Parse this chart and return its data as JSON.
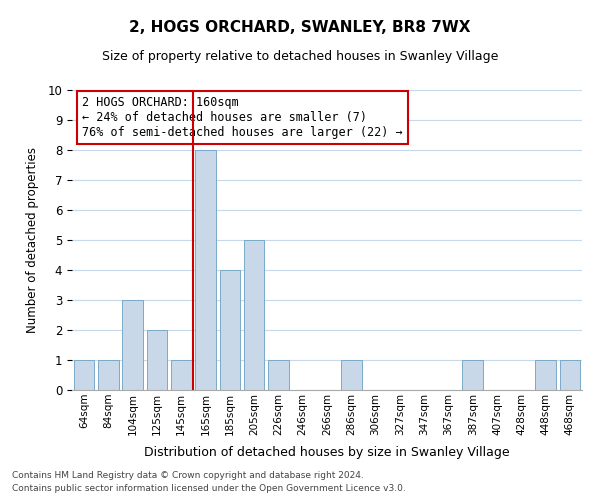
{
  "title": "2, HOGS ORCHARD, SWANLEY, BR8 7WX",
  "subtitle": "Size of property relative to detached houses in Swanley Village",
  "xlabel": "Distribution of detached houses by size in Swanley Village",
  "ylabel": "Number of detached properties",
  "bar_labels": [
    "64sqm",
    "84sqm",
    "104sqm",
    "125sqm",
    "145sqm",
    "165sqm",
    "185sqm",
    "205sqm",
    "226sqm",
    "246sqm",
    "266sqm",
    "286sqm",
    "306sqm",
    "327sqm",
    "347sqm",
    "367sqm",
    "387sqm",
    "407sqm",
    "428sqm",
    "448sqm",
    "468sqm"
  ],
  "bar_values": [
    1,
    1,
    3,
    2,
    1,
    8,
    4,
    5,
    1,
    0,
    0,
    1,
    0,
    0,
    0,
    0,
    1,
    0,
    0,
    1,
    1
  ],
  "bar_color": "#c8d8e8",
  "bar_edge_color": "#7aaac8",
  "highlight_line_index": 5,
  "highlight_line_color": "#cc0000",
  "annotation_title": "2 HOGS ORCHARD: 160sqm",
  "annotation_line1": "← 24% of detached houses are smaller (7)",
  "annotation_line2": "76% of semi-detached houses are larger (22) →",
  "annotation_box_color": "#ffffff",
  "annotation_box_edge": "#cc0000",
  "ylim": [
    0,
    10
  ],
  "yticks": [
    0,
    1,
    2,
    3,
    4,
    5,
    6,
    7,
    8,
    9,
    10
  ],
  "footnote1": "Contains HM Land Registry data © Crown copyright and database right 2024.",
  "footnote2": "Contains public sector information licensed under the Open Government Licence v3.0.",
  "background_color": "#ffffff",
  "grid_color": "#c8d8e8"
}
